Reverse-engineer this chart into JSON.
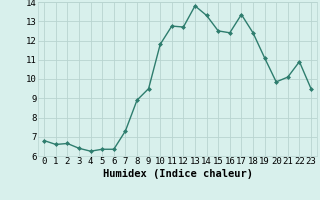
{
  "x": [
    0,
    1,
    2,
    3,
    4,
    5,
    6,
    7,
    8,
    9,
    10,
    11,
    12,
    13,
    14,
    15,
    16,
    17,
    18,
    19,
    20,
    21,
    22,
    23
  ],
  "y": [
    6.8,
    6.6,
    6.65,
    6.4,
    6.25,
    6.35,
    6.35,
    7.3,
    8.9,
    9.5,
    11.8,
    12.75,
    12.7,
    13.8,
    13.3,
    12.5,
    12.4,
    13.35,
    12.4,
    11.1,
    9.85,
    10.1,
    10.9,
    9.5
  ],
  "line_color": "#2e7d6e",
  "marker": "D",
  "marker_size": 2.0,
  "line_width": 1.0,
  "bg_color": "#d8f0ec",
  "grid_color": "#b8d4d0",
  "xlabel": "Humidex (Indice chaleur)",
  "xlabel_fontsize": 7.5,
  "tick_fontsize": 6.5,
  "ylim": [
    6,
    14
  ],
  "xlim": [
    -0.5,
    23.5
  ],
  "yticks": [
    6,
    7,
    8,
    9,
    10,
    11,
    12,
    13,
    14
  ],
  "xticks": [
    0,
    1,
    2,
    3,
    4,
    5,
    6,
    7,
    8,
    9,
    10,
    11,
    12,
    13,
    14,
    15,
    16,
    17,
    18,
    19,
    20,
    21,
    22,
    23
  ]
}
